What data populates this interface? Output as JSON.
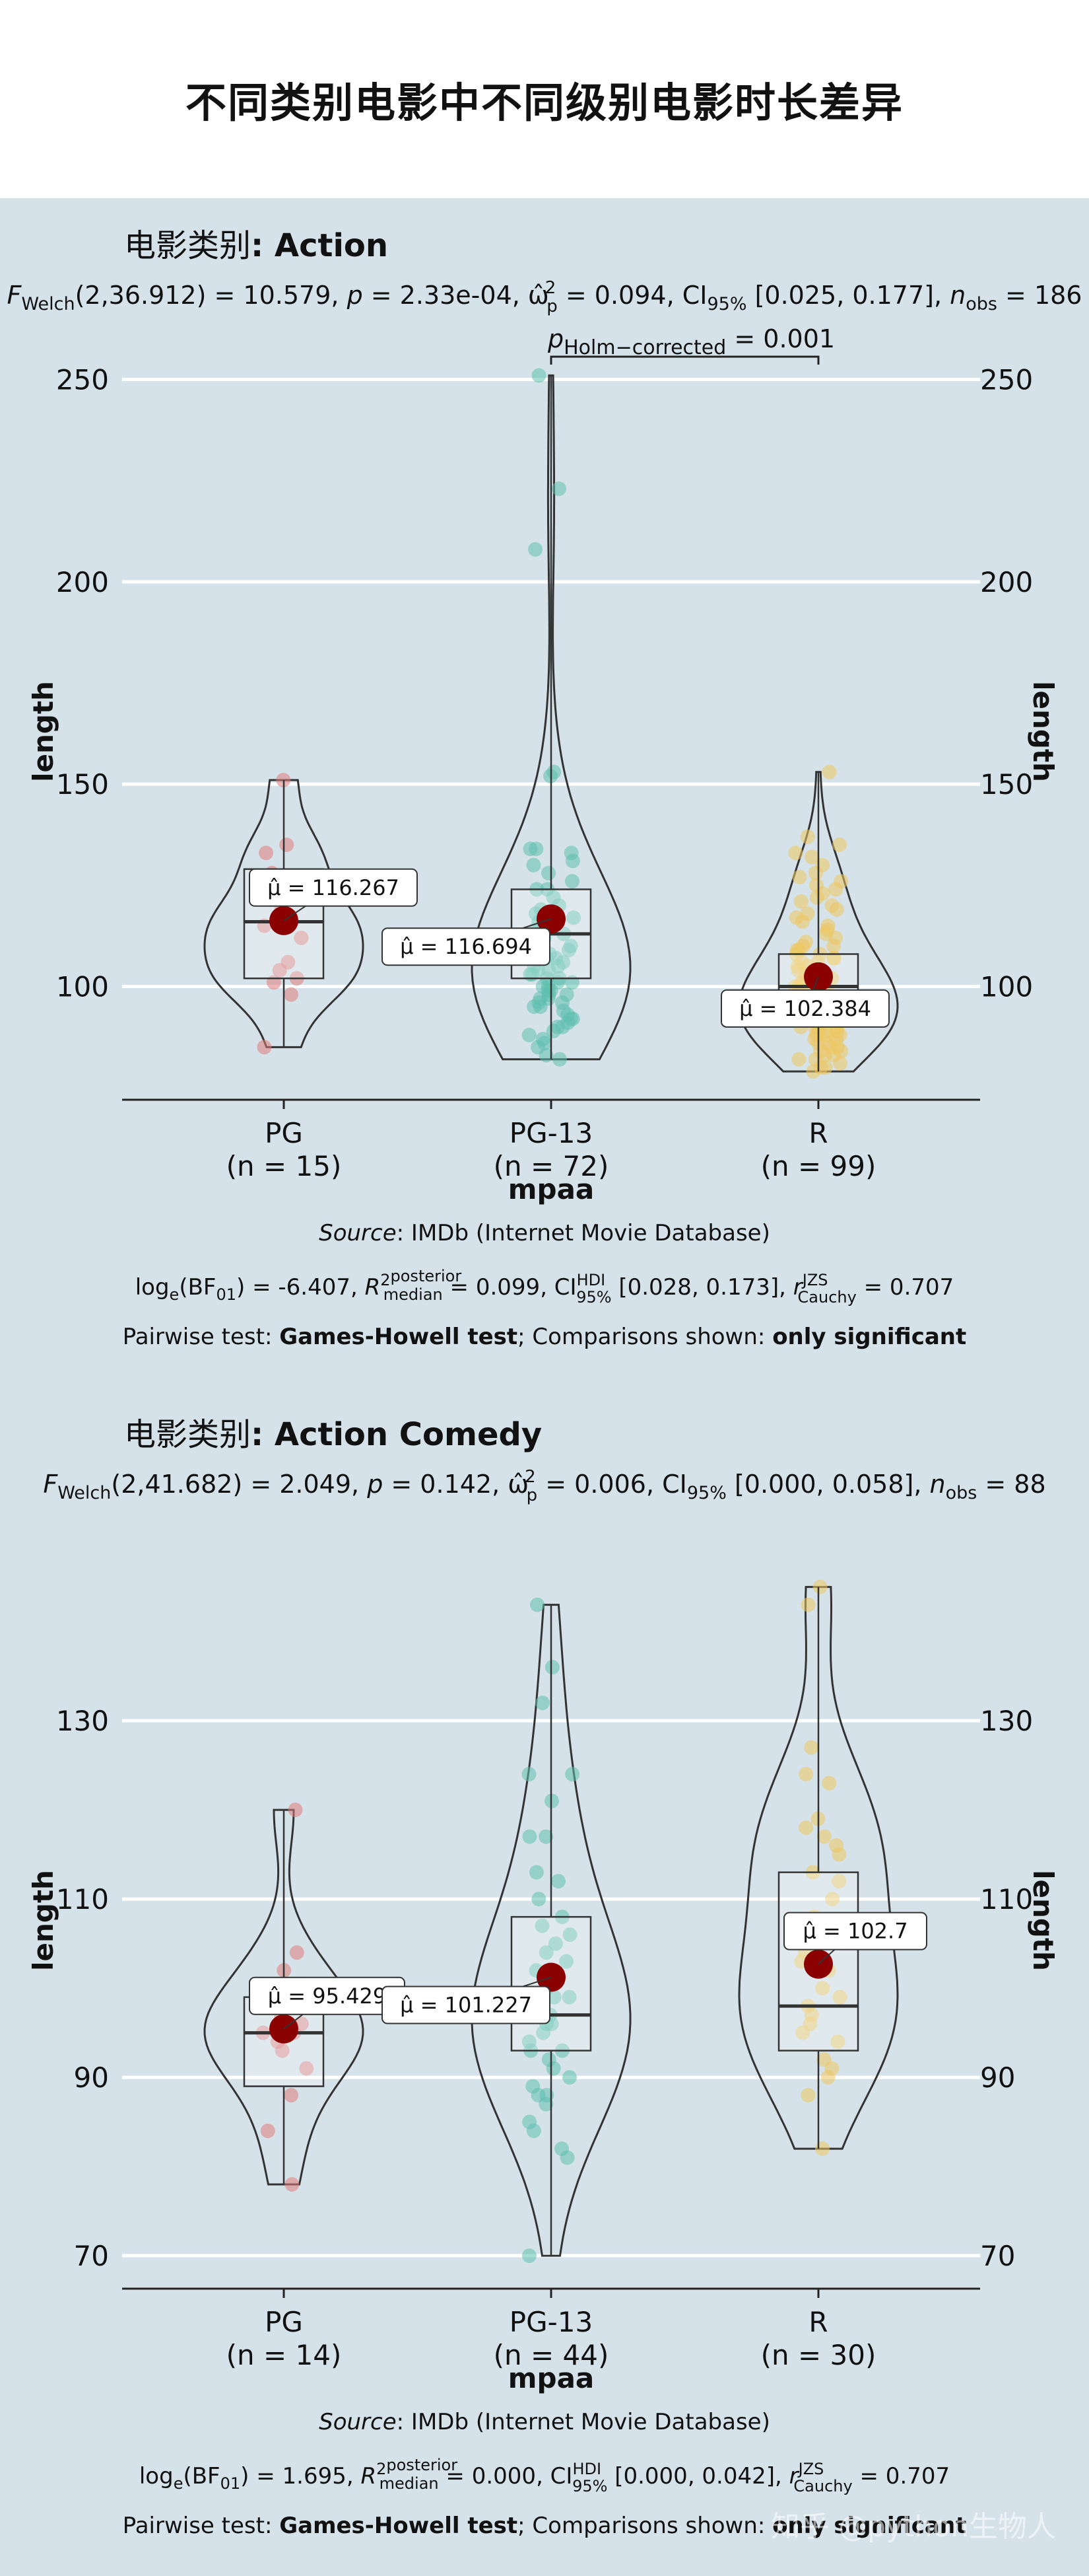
{
  "title": "不同类别电影中不同级别电影时长差异",
  "colors": {
    "background": "#d5e2e9",
    "PG": "#e07b7b",
    "PG-13": "#5fc0ae",
    "R": "#efc75e",
    "mean_point": "#8b0000"
  },
  "watermark": "知乎 @python生物人",
  "panels": [
    {
      "facet_prefix": "电影类别",
      "facet_value": "Action",
      "stats_line": "F_Welch(2,36.912) = 10.579, p = 2.33e-04, ω̂²p = 0.094, CI95% [0.025, 0.177], n_obs = 186",
      "stats_parts": {
        "F": "F",
        "Fsub": "Welch",
        "df": "(2,36.912) = 10.579, ",
        "p": "p",
        "pval": " = 2.33e-04, ",
        "omega": "ω̂",
        "omegasup": "2",
        "omegasub": "p",
        "omegaval": " = 0.094, CI",
        "cisub": "95%",
        "civals": " [0.025, 0.177], ",
        "n": "n",
        "nsub": "obs",
        "nval": " = 186"
      },
      "bracket_label": {
        "p": "p",
        "sub": "Holm−corrected",
        "val": " = 0.001"
      },
      "caption_source": {
        "italic": "Source",
        "rest": ": IMDb (Internet Movie Database)"
      },
      "caption_bf": "log_e(BF01) = -6.407, R²posterior median = 0.099, CI HDI 95% [0.028, 0.173], r JZS Cauchy = 0.707",
      "caption_bf_parts": {
        "bf": "-6.407",
        "r2": "0.099",
        "ci": "[0.028, 0.173]",
        "r": "0.707"
      },
      "caption_pairwise": {
        "a": "Pairwise test: ",
        "b": "Games-Howell test",
        "c": "; Comparisons shown: ",
        "d": "only significant"
      },
      "chart_data": {
        "type": "violin",
        "xlabel": "mpaa",
        "ylabel": "length",
        "ylim": [
          72,
          254
        ],
        "yticks": [
          100,
          150,
          200,
          250
        ],
        "categories": [
          "PG",
          "PG-13",
          "R"
        ],
        "category_labels": [
          "(n = 15)",
          "(n = 72)",
          "(n = 99)"
        ],
        "means": [
          116.267,
          116.694,
          102.384
        ],
        "mean_labels": [
          "μ̂ = 116.267",
          "μ̂ = 116.694",
          "μ̂ = 102.384"
        ],
        "boxes": [
          {
            "q1": 102,
            "median": 116,
            "q3": 129,
            "min": 85,
            "max": 151
          },
          {
            "q1": 102,
            "median": 113,
            "q3": 124,
            "min": 82,
            "max": 251
          },
          {
            "q1": 93,
            "median": 100,
            "q3": 108,
            "min": 79,
            "max": 153
          }
        ],
        "points": [
          [
            151,
            135,
            133,
            128,
            120,
            116,
            115,
            112,
            106,
            104,
            101,
            102,
            98,
            85,
            116
          ],
          [
            251,
            223,
            208,
            153,
            152,
            134,
            134,
            133,
            131,
            130,
            128,
            126,
            124,
            124,
            122,
            120,
            119,
            118,
            117,
            116,
            116,
            115,
            114,
            114,
            113,
            112,
            112,
            111,
            110,
            110,
            109,
            108,
            108,
            107,
            107,
            106,
            105,
            105,
            104,
            104,
            103,
            103,
            102,
            102,
            101,
            101,
            100,
            100,
            99,
            99,
            98,
            98,
            97,
            97,
            96,
            96,
            95,
            95,
            94,
            93,
            92,
            92,
            91,
            90,
            90,
            89,
            88,
            87,
            86,
            85,
            83,
            82
          ],
          [
            153,
            137,
            135,
            133,
            132,
            130,
            128,
            127,
            126,
            125,
            124,
            123,
            122,
            121,
            120,
            119,
            118,
            117,
            116,
            115,
            114,
            113,
            112,
            111,
            110,
            110,
            109,
            109,
            108,
            108,
            107,
            107,
            106,
            106,
            105,
            105,
            104,
            104,
            103,
            103,
            102,
            102,
            101,
            101,
            100,
            100,
            100,
            99,
            99,
            99,
            98,
            98,
            98,
            97,
            97,
            97,
            96,
            96,
            96,
            95,
            95,
            95,
            94,
            94,
            94,
            93,
            93,
            93,
            92,
            92,
            92,
            91,
            91,
            91,
            90,
            90,
            90,
            89,
            89,
            89,
            88,
            88,
            88,
            87,
            87,
            86,
            86,
            85,
            85,
            84,
            84,
            83,
            83,
            82,
            82,
            81,
            80,
            80,
            79
          ]
        ]
      }
    },
    {
      "facet_prefix": "电影类别",
      "facet_value": "Action Comedy",
      "stats_line": "F_Welch(2,41.682) = 2.049, p = 0.142, ω̂²p = 0.006, CI95% [0.000, 0.058], n_obs = 88",
      "stats_parts": {
        "F": "F",
        "Fsub": "Welch",
        "df": "(2,41.682) = 2.049, ",
        "p": "p",
        "pval": " = 0.142, ",
        "omega": "ω̂",
        "omegasup": "2",
        "omegasub": "p",
        "omegaval": " = 0.006, CI",
        "cisub": "95%",
        "civals": " [0.000, 0.058], ",
        "n": "n",
        "nsub": "obs",
        "nval": " = 88"
      },
      "caption_source": {
        "italic": "Source",
        "rest": ": IMDb (Internet Movie Database)"
      },
      "caption_bf": "log_e(BF01) = 1.695, R²posterior median = 0.000, CI HDI 95% [0.000, 0.042], r JZS Cauchy = 0.707",
      "caption_bf_parts": {
        "bf": "1.695",
        "r2": "0.000",
        "ci": "[0.000, 0.042]",
        "r": "0.707"
      },
      "caption_pairwise": {
        "a": "Pairwise test: ",
        "b": "Games-Howell test",
        "c": "; Comparisons shown: ",
        "d": "only significant"
      },
      "chart_data": {
        "type": "violin",
        "xlabel": "mpaa",
        "ylabel": "length",
        "ylim": [
          66.3,
          148.9
        ],
        "yticks": [
          70,
          90,
          110,
          130
        ],
        "categories": [
          "PG",
          "PG-13",
          "R"
        ],
        "category_labels": [
          "(n = 14)",
          "(n = 44)",
          "(n = 30)"
        ],
        "means": [
          95.429,
          101.227,
          102.7
        ],
        "mean_labels": [
          "μ̂ = 95.429",
          "μ̂ = 101.227",
          "μ̂ = 102.7"
        ],
        "boxes": [
          {
            "q1": 89,
            "median": 95,
            "q3": 99,
            "min": 78,
            "max": 120
          },
          {
            "q1": 93,
            "median": 97,
            "q3": 108,
            "min": 70,
            "max": 143
          },
          {
            "q1": 93,
            "median": 98,
            "q3": 113,
            "min": 82,
            "max": 145
          }
        ],
        "points": [
          [
            120,
            104,
            102,
            97,
            96,
            95,
            95,
            94,
            93,
            91,
            88,
            84,
            78,
            99
          ],
          [
            143,
            136,
            132,
            124,
            124,
            121,
            117,
            117,
            113,
            112,
            110,
            108,
            107,
            106,
            105,
            104,
            103,
            102,
            101,
            100,
            99,
            99,
            98,
            98,
            97,
            97,
            96,
            96,
            95,
            94,
            93,
            93,
            92,
            91,
            90,
            89,
            88,
            88,
            87,
            85,
            84,
            82,
            81,
            70
          ],
          [
            145,
            143,
            127,
            124,
            123,
            119,
            118,
            117,
            116,
            115,
            113,
            112,
            110,
            108,
            106,
            104,
            103,
            102,
            100,
            99,
            98,
            97,
            96,
            95,
            94,
            92,
            91,
            90,
            88,
            82
          ]
        ]
      }
    }
  ]
}
